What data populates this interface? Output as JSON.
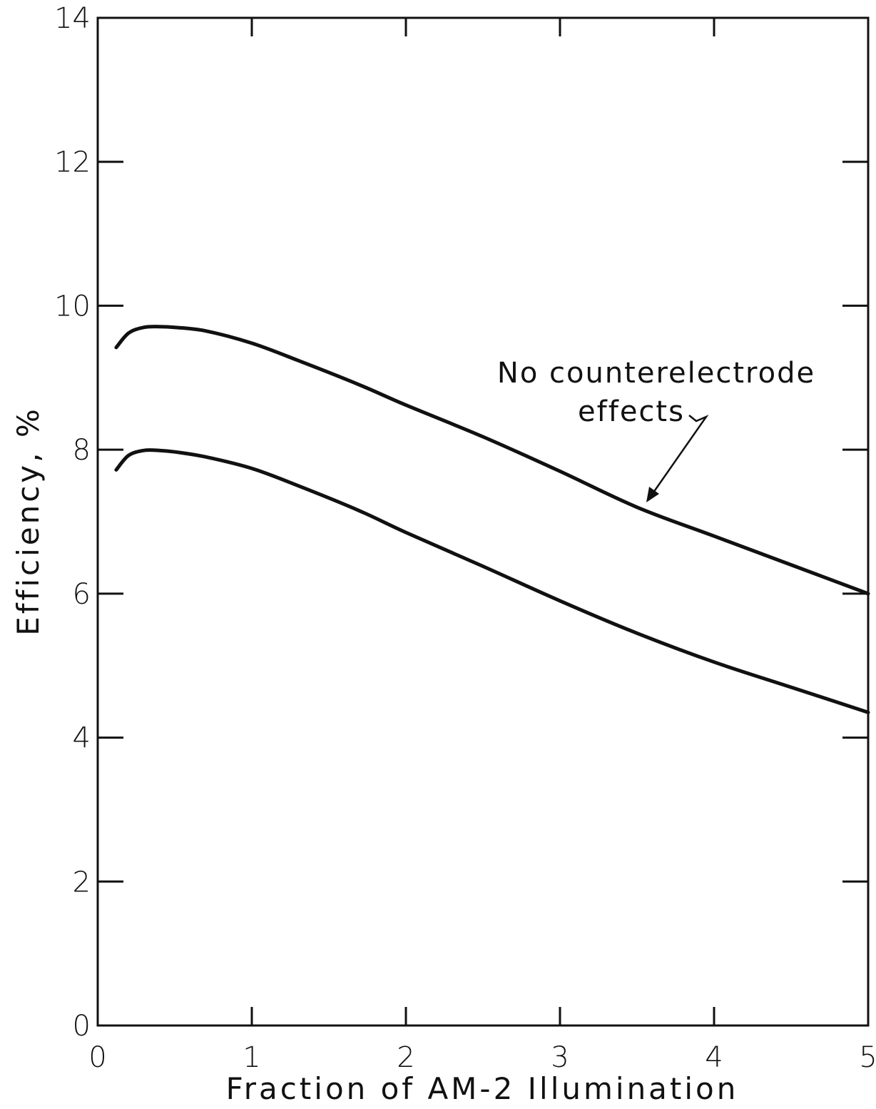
{
  "chart_data": {
    "type": "line",
    "xlabel": "Fraction of AM-2 Illumination",
    "ylabel": "Efficiency, %",
    "xlim": [
      0,
      5
    ],
    "ylim": [
      0,
      14
    ],
    "x_ticks": [
      "0",
      "1",
      "2",
      "3",
      "4",
      "5"
    ],
    "y_ticks": [
      "0",
      "2",
      "4",
      "6",
      "8",
      "10",
      "12",
      "14"
    ],
    "grid": false,
    "annotations": [
      {
        "line1": "No counterelectrode",
        "line2": "effects"
      }
    ],
    "series": [
      {
        "x": [
          0.12,
          0.2,
          0.3,
          0.4,
          0.5,
          0.7,
          1.0,
          1.3,
          1.7,
          2.0,
          2.5,
          3.0,
          3.5,
          4.0,
          4.5,
          5.0
        ],
        "y": [
          9.42,
          9.62,
          9.7,
          9.71,
          9.7,
          9.65,
          9.48,
          9.24,
          8.9,
          8.62,
          8.18,
          7.7,
          7.2,
          6.8,
          6.4,
          6.0
        ]
      },
      {
        "x": [
          0.12,
          0.2,
          0.3,
          0.4,
          0.5,
          0.7,
          1.0,
          1.3,
          1.7,
          2.0,
          2.5,
          3.0,
          3.5,
          4.0,
          4.5,
          5.0
        ],
        "y": [
          7.72,
          7.92,
          7.99,
          7.99,
          7.97,
          7.9,
          7.74,
          7.5,
          7.15,
          6.85,
          6.38,
          5.9,
          5.45,
          5.05,
          4.7,
          4.35
        ]
      }
    ]
  }
}
